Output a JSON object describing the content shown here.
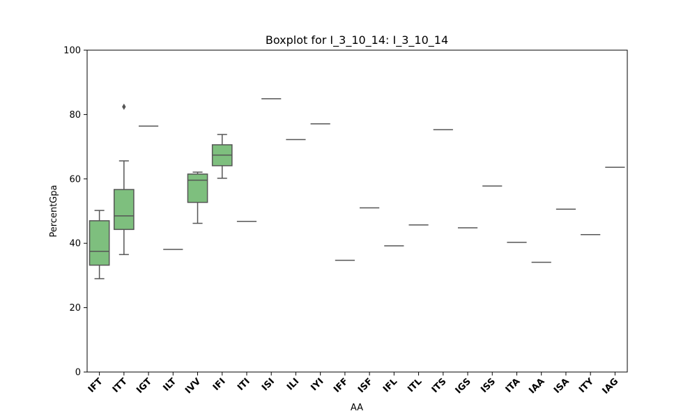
{
  "chart_data": {
    "type": "boxplot",
    "title": "Boxplot for I_3_10_14: I_3_10_14",
    "xlabel": "AA",
    "ylabel": "PercentGpa",
    "ylim": [
      0,
      100
    ],
    "yticks": [
      0,
      20,
      40,
      60,
      80,
      100
    ],
    "grid": false,
    "box_color": "#7ebf7e",
    "line_color": "#555555",
    "categories": [
      "IFT",
      "ITT",
      "IGT",
      "ILT",
      "IVV",
      "IFI",
      "ITI",
      "ISI",
      "ILI",
      "IYI",
      "IFF",
      "ISF",
      "IFL",
      "ITL",
      "ITS",
      "IGS",
      "ISS",
      "ITA",
      "IAA",
      "ISA",
      "ITY",
      "IAG"
    ],
    "boxes": [
      {
        "category": "IFT",
        "whislo": 29.0,
        "q1": 33.2,
        "med": 37.5,
        "q3": 47.0,
        "whishi": 50.2,
        "fliers": []
      },
      {
        "category": "ITT",
        "whislo": 36.5,
        "q1": 44.3,
        "med": 48.5,
        "q3": 56.7,
        "whishi": 65.6,
        "fliers": [
          82.4
        ]
      },
      {
        "category": "IGT",
        "whislo": 76.4,
        "q1": 76.4,
        "med": 76.4,
        "q3": 76.4,
        "whishi": 76.4,
        "fliers": []
      },
      {
        "category": "ILT",
        "whislo": 38.1,
        "q1": 38.1,
        "med": 38.1,
        "q3": 38.1,
        "whishi": 38.1,
        "fliers": []
      },
      {
        "category": "IVV",
        "whislo": 46.2,
        "q1": 52.7,
        "med": 59.6,
        "q3": 61.5,
        "whishi": 62.1,
        "fliers": []
      },
      {
        "category": "IFI",
        "whislo": 60.2,
        "q1": 64.1,
        "med": 67.4,
        "q3": 70.6,
        "whishi": 73.8,
        "fliers": []
      },
      {
        "category": "ITI",
        "whislo": 46.8,
        "q1": 46.8,
        "med": 46.8,
        "q3": 46.8,
        "whishi": 46.8,
        "fliers": []
      },
      {
        "category": "ISI",
        "whislo": 84.9,
        "q1": 84.9,
        "med": 84.9,
        "q3": 84.9,
        "whishi": 84.9,
        "fliers": []
      },
      {
        "category": "ILI",
        "whislo": 72.2,
        "q1": 72.2,
        "med": 72.2,
        "q3": 72.2,
        "whishi": 72.2,
        "fliers": []
      },
      {
        "category": "IYI",
        "whislo": 77.1,
        "q1": 77.1,
        "med": 77.1,
        "q3": 77.1,
        "whishi": 77.1,
        "fliers": []
      },
      {
        "category": "IFF",
        "whislo": 34.7,
        "q1": 34.7,
        "med": 34.7,
        "q3": 34.7,
        "whishi": 34.7,
        "fliers": []
      },
      {
        "category": "ISF",
        "whislo": 51.0,
        "q1": 51.0,
        "med": 51.0,
        "q3": 51.0,
        "whishi": 51.0,
        "fliers": []
      },
      {
        "category": "IFL",
        "whislo": 39.2,
        "q1": 39.2,
        "med": 39.2,
        "q3": 39.2,
        "whishi": 39.2,
        "fliers": []
      },
      {
        "category": "ITL",
        "whislo": 45.7,
        "q1": 45.7,
        "med": 45.7,
        "q3": 45.7,
        "whishi": 45.7,
        "fliers": []
      },
      {
        "category": "ITS",
        "whislo": 75.3,
        "q1": 75.3,
        "med": 75.3,
        "q3": 75.3,
        "whishi": 75.3,
        "fliers": []
      },
      {
        "category": "IGS",
        "whislo": 44.8,
        "q1": 44.8,
        "med": 44.8,
        "q3": 44.8,
        "whishi": 44.8,
        "fliers": []
      },
      {
        "category": "ISS",
        "whislo": 57.8,
        "q1": 57.8,
        "med": 57.8,
        "q3": 57.8,
        "whishi": 57.8,
        "fliers": []
      },
      {
        "category": "ITA",
        "whislo": 40.3,
        "q1": 40.3,
        "med": 40.3,
        "q3": 40.3,
        "whishi": 40.3,
        "fliers": []
      },
      {
        "category": "IAA",
        "whislo": 34.1,
        "q1": 34.1,
        "med": 34.1,
        "q3": 34.1,
        "whishi": 34.1,
        "fliers": []
      },
      {
        "category": "ISA",
        "whislo": 50.6,
        "q1": 50.6,
        "med": 50.6,
        "q3": 50.6,
        "whishi": 50.6,
        "fliers": []
      },
      {
        "category": "ITY",
        "whislo": 42.7,
        "q1": 42.7,
        "med": 42.7,
        "q3": 42.7,
        "whishi": 42.7,
        "fliers": []
      },
      {
        "category": "IAG",
        "whislo": 63.6,
        "q1": 63.6,
        "med": 63.6,
        "q3": 63.6,
        "whishi": 63.6,
        "fliers": []
      }
    ]
  }
}
